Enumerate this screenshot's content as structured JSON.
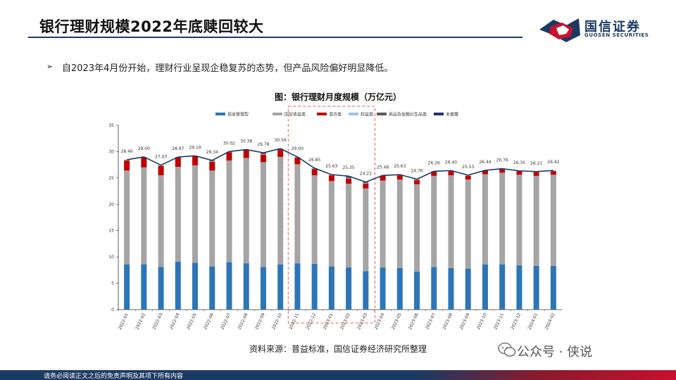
{
  "header": {
    "title": "银行理财规模2022年底赎回较大",
    "logo_cn": "国信证券",
    "logo_en": "GUOSEN SECURITIES"
  },
  "bullet": {
    "mark": "➢",
    "text": "自2023年4月份开始，理财行业呈现企稳复苏的态势，但产品风险偏好明显降低。"
  },
  "chart_title": "图：银行理财月度规模（万亿元）",
  "source": "资料来源：普益标准，国信证券经济研究所整理",
  "watermark": "公众号 · 侠说",
  "footer": "请务必阅读正文之后的免责声明及其项下所有内容",
  "colors": {
    "cash": "#2e75b6",
    "fixed": "#a5a5a5",
    "mixed": "#c00000",
    "equity": "#9dc3e6",
    "derivative": "#595959",
    "undisclosed": "#1f3864",
    "total_line": "#1f3864",
    "highlight_box": "#e05a5a"
  },
  "chart_data": {
    "type": "bar",
    "stacked": true,
    "title": "图：银行理财月度规模（万亿元）",
    "categories": [
      "2022-01",
      "2022-02",
      "2022-03",
      "2022-04",
      "2022-05",
      "2022-06",
      "2022-07",
      "2022-08",
      "2022-09",
      "2022-10",
      "2022-11",
      "2022-12",
      "2023-01",
      "2023-02",
      "2023-03",
      "2023-04",
      "2023-05",
      "2023-06",
      "2023-07",
      "2023-08",
      "2023-09",
      "2023-10",
      "2023-11",
      "2023-12",
      "2024-01",
      "2024-02"
    ],
    "ylim": [
      0,
      35
    ],
    "yticks": [
      0,
      5,
      10,
      15,
      20,
      25,
      30,
      35
    ],
    "legend": [
      "现金管理型",
      "固定收益类",
      "混合类",
      "权益类",
      "商品及金融衍生品类",
      "未披露"
    ],
    "series": [
      {
        "name": "现金管理型",
        "color": "#2e75b6",
        "values": [
          8.6,
          8.6,
          8.1,
          9.1,
          8.9,
          8.2,
          9.0,
          8.8,
          8.1,
          8.6,
          8.8,
          8.7,
          8.2,
          8.0,
          7.3,
          8.0,
          7.9,
          7.2,
          8.1,
          7.9,
          7.8,
          8.6,
          8.6,
          8.4,
          8.3,
          8.3
        ]
      },
      {
        "name": "固定收益类",
        "color": "#a5a5a5",
        "values": [
          17.8,
          18.4,
          17.4,
          18.0,
          18.5,
          18.2,
          19.3,
          20.0,
          19.9,
          20.4,
          18.8,
          16.8,
          16.2,
          15.9,
          15.7,
          16.5,
          16.8,
          16.6,
          17.3,
          17.6,
          16.9,
          17.1,
          17.4,
          17.2,
          17.1,
          17.3
        ]
      },
      {
        "name": "混合类",
        "color": "#c00000",
        "values": [
          1.9,
          1.9,
          1.8,
          1.8,
          1.7,
          1.7,
          1.6,
          1.5,
          1.4,
          1.4,
          1.3,
          1.2,
          1.1,
          1.0,
          0.9,
          0.9,
          0.8,
          0.8,
          0.8,
          0.8,
          0.7,
          0.7,
          0.7,
          0.7,
          0.7,
          0.7
        ]
      },
      {
        "name": "权益类",
        "color": "#9dc3e6",
        "values": [
          0.1,
          0.1,
          0.1,
          0.1,
          0.1,
          0.1,
          0.1,
          0.1,
          0.1,
          0.1,
          0.1,
          0.1,
          0.1,
          0.1,
          0.1,
          0.1,
          0.1,
          0.1,
          0.1,
          0.1,
          0.1,
          0.1,
          0.1,
          0.1,
          0.1,
          0.1
        ]
      },
      {
        "name": "商品及金融衍生品类",
        "color": "#595959",
        "values": [
          0.06,
          0.0,
          0.03,
          0.0,
          0.0,
          0.14,
          0.0,
          0.0,
          0.28,
          0.06,
          0.0,
          0.05,
          0.03,
          0.35,
          0.22,
          0.0,
          0.03,
          0.06,
          0.0,
          0.0,
          0.03,
          0.0,
          0.0,
          0.0,
          0.0,
          0.02
        ]
      },
      {
        "name": "未披露",
        "color": "#1f3864",
        "values": [
          0,
          0,
          0,
          0,
          0,
          0,
          0,
          0,
          0,
          0,
          0,
          0,
          0,
          0,
          0,
          0,
          0,
          0,
          0,
          0,
          0,
          0,
          0,
          0,
          0,
          0
        ]
      }
    ],
    "totals": [
      28.46,
      29.0,
      27.43,
      28.97,
      29.19,
      28.34,
      30.02,
      30.38,
      29.78,
      30.56,
      29.0,
      26.85,
      25.63,
      25.35,
      24.22,
      25.48,
      25.63,
      24.76,
      26.26,
      26.4,
      25.53,
      26.44,
      26.76,
      26.35,
      26.21,
      26.42
    ],
    "total_labels": [
      "28.46",
      "29.00",
      "27.43",
      "28.97",
      "29.19",
      "28.34",
      "30.02",
      "30.38",
      "29.78",
      "30.56",
      "29.00",
      "26.85",
      "25.63",
      "25.35",
      "24.22",
      "25.48",
      "25.63",
      "24.76",
      "26.26",
      "26.40",
      "25.53",
      "26.44",
      "26.76",
      "26.35",
      "26.21",
      "26.42"
    ],
    "highlight_range": [
      "2022-11",
      "2023-03"
    ],
    "grid": false,
    "legend_position": "top"
  }
}
